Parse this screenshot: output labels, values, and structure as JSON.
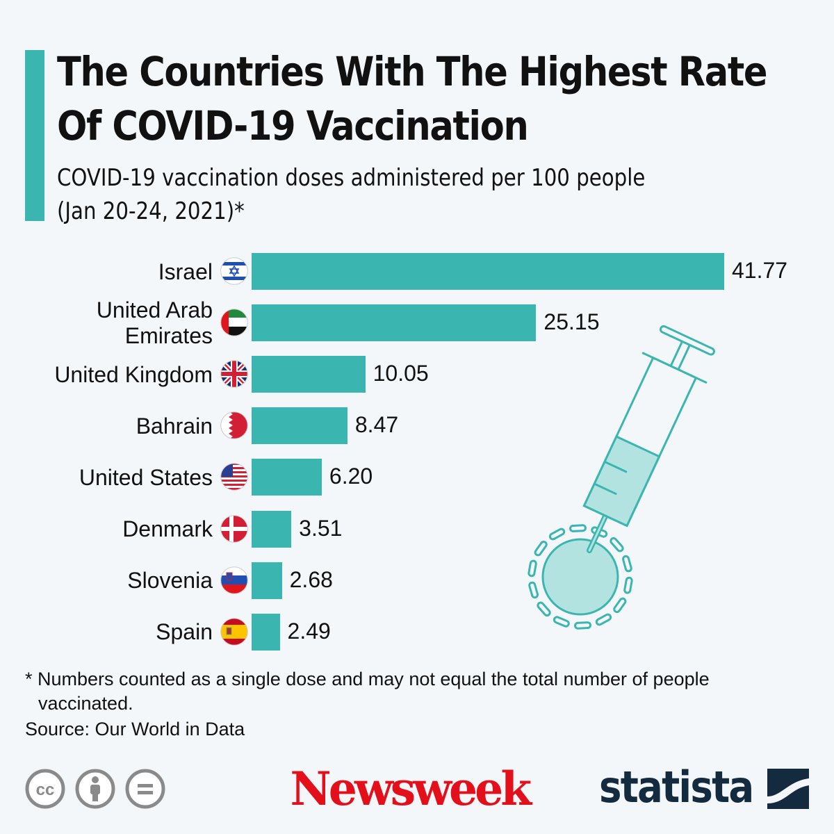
{
  "colors": {
    "bar": "#3ab5b0",
    "accent": "#3ab5b0",
    "light": "#b2e3e0",
    "newsweek": "#e3101b",
    "statista": "#142a3e"
  },
  "chart_data": {
    "type": "bar",
    "orientation": "horizontal",
    "title": "The Countries With The Highest Rate Of COVID-19 Vaccination",
    "subtitle_line1": "COVID-19 vaccination doses administered per 100 people",
    "subtitle_line2": "(Jan 20-24, 2021)*",
    "categories": [
      "Israel",
      "United Arab Emirates",
      "United Kingdom",
      "Bahrain",
      "United States",
      "Denmark",
      "Slovenia",
      "Spain"
    ],
    "label_lines": [
      [
        "Israel"
      ],
      [
        "United Arab",
        "Emirates"
      ],
      [
        "United Kingdom"
      ],
      [
        "Bahrain"
      ],
      [
        "United States"
      ],
      [
        "Denmark"
      ],
      [
        "Slovenia"
      ],
      [
        "Spain"
      ]
    ],
    "values": [
      41.77,
      25.15,
      10.05,
      8.47,
      6.2,
      3.51,
      2.68,
      2.49
    ],
    "value_labels": [
      "41.77",
      "25.15",
      "10.05",
      "8.47",
      "6.20",
      "3.51",
      "2.68",
      "2.49"
    ],
    "flags": [
      "israel-flag",
      "uae-flag",
      "uk-flag",
      "bahrain-flag",
      "us-flag",
      "denmark-flag",
      "slovenia-flag",
      "spain-flag"
    ],
    "xlim": [
      0,
      41.77
    ],
    "grid": false
  },
  "footnote_line1": "* Numbers counted as a single dose and may not equal the total number of people",
  "footnote_line2": "vaccinated.",
  "source": "Source: Our World in Data",
  "logos": {
    "newsweek": "Newsweek",
    "statista": "statista",
    "license": [
      "cc-icon",
      "attribution-icon",
      "no-derivatives-icon"
    ]
  }
}
